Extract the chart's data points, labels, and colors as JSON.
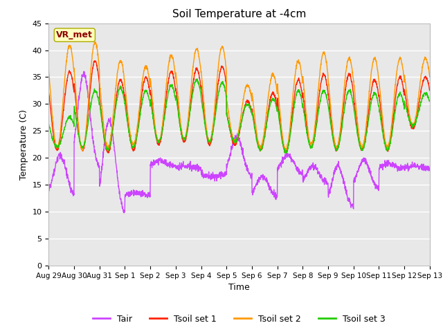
{
  "title": "Soil Temperature at -4cm",
  "xlabel": "Time",
  "ylabel": "Temperature (C)",
  "ylim": [
    0,
    45
  ],
  "yticks": [
    0,
    5,
    10,
    15,
    20,
    25,
    30,
    35,
    40,
    45
  ],
  "x_tick_labels": [
    "Aug 29",
    "Aug 30",
    "Aug 31",
    "Sep 1",
    "Sep 2",
    "Sep 3",
    "Sep 4",
    "Sep 5",
    "Sep 6",
    "Sep 7",
    "Sep 8",
    "Sep 9",
    "Sep 10",
    "Sep 11",
    "Sep 12",
    "Sep 13"
  ],
  "annotation_text": "VR_met",
  "annotation_color": "#8B0000",
  "annotation_bg": "#FFFFC0",
  "color_tair": "#CC44FF",
  "color_tsoil1": "#FF2200",
  "color_tsoil2": "#FF9900",
  "color_tsoil3": "#22CC00",
  "legend_labels": [
    "Tair",
    "Tsoil set 1",
    "Tsoil set 2",
    "Tsoil set 3"
  ],
  "bg_inner": "#E8E8E8",
  "bg_outer": "#FFFFFF",
  "grid_color": "#FFFFFF",
  "n_days": 15,
  "points_per_day": 144,
  "tsoil2_peaks": [
    40.8,
    41.5,
    38.0,
    37.0,
    39.0,
    40.2,
    40.6,
    33.5,
    35.5,
    38.0,
    39.5,
    38.5,
    38.5,
    38.5,
    38.5
  ],
  "tsoil2_mins": [
    22.0,
    21.5,
    22.0,
    22.5,
    23.0,
    23.5,
    23.0,
    23.0,
    22.0,
    21.5,
    22.5,
    22.0,
    22.0,
    22.0,
    26.0
  ],
  "tsoil1_peaks": [
    36.0,
    38.0,
    34.5,
    35.0,
    36.0,
    36.5,
    37.0,
    30.5,
    32.0,
    34.5,
    35.5,
    35.5,
    34.5,
    35.0,
    35.0
  ],
  "tsoil1_mins": [
    21.5,
    21.5,
    21.0,
    21.5,
    22.5,
    23.0,
    22.5,
    22.5,
    21.5,
    21.0,
    22.0,
    21.5,
    21.5,
    21.5,
    25.5
  ],
  "tsoil3_peaks": [
    27.5,
    32.5,
    33.0,
    32.5,
    33.5,
    34.5,
    34.0,
    30.0,
    31.0,
    32.5,
    32.5,
    32.5,
    32.0,
    32.0,
    32.0
  ],
  "tsoil3_mins": [
    22.0,
    22.0,
    21.5,
    22.0,
    23.0,
    23.5,
    23.0,
    23.0,
    21.5,
    21.0,
    22.0,
    21.5,
    21.5,
    21.5,
    26.0
  ],
  "tair_peaks": [
    20.5,
    35.5,
    27.0,
    13.5,
    19.5,
    18.5,
    16.5,
    24.0,
    16.5,
    20.5,
    18.5,
    18.5,
    19.5,
    19.0,
    18.5
  ],
  "tair_mins": [
    12.5,
    17.5,
    9.0,
    13.0,
    18.5,
    18.0,
    17.0,
    16.0,
    12.5,
    17.0,
    15.0,
    10.5,
    14.0,
    18.0,
    18.0
  ],
  "tair_peak_pos": [
    0.45,
    0.38,
    0.38,
    0.45,
    0.38,
    0.4,
    0.4,
    0.4,
    0.4,
    0.4,
    0.4,
    0.38,
    0.4,
    0.4,
    0.4
  ]
}
